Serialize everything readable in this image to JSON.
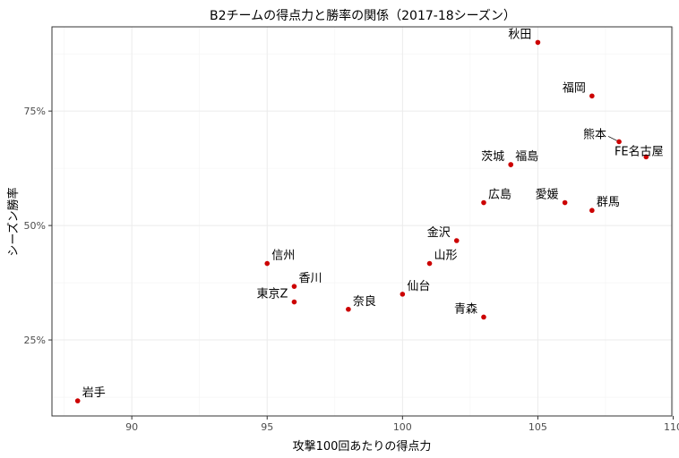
{
  "chart_data": {
    "type": "scatter",
    "title": "B2チームの得点力と勝率の関係（2017-18シーズン）",
    "xlabel": "攻撃100回あたりの得点力",
    "ylabel": "シーズン勝率",
    "xlim": [
      87.05,
      109.95
    ],
    "ylim": [
      0.084,
      0.934
    ],
    "x_ticks": [
      90,
      95,
      100,
      105,
      110
    ],
    "x_tick_labels": [
      "90",
      "95",
      "100",
      "105",
      "110"
    ],
    "y_ticks": [
      0.25,
      0.5,
      0.75
    ],
    "y_tick_labels": [
      "25%",
      "50%",
      "75%"
    ],
    "grid": true,
    "point_color": "#cc0000",
    "points": [
      {
        "name": "秋田",
        "x": 105.0,
        "y": 0.9,
        "label_side": "left"
      },
      {
        "name": "福岡",
        "x": 107.0,
        "y": 0.783,
        "label_side": "left"
      },
      {
        "name": "熊本",
        "x": 108.0,
        "y": 0.683,
        "label_side": "left"
      },
      {
        "name": "FE名古屋",
        "x": 109.0,
        "y": 0.65,
        "label_side": "center-above"
      },
      {
        "name": "茨城",
        "x": 104.0,
        "y": 0.633,
        "label_side": "left"
      },
      {
        "name": "福島",
        "x": 104.0,
        "y": 0.633,
        "label_side": "right"
      },
      {
        "name": "広島",
        "x": 103.0,
        "y": 0.55,
        "label_side": "right"
      },
      {
        "name": "愛媛",
        "x": 106.0,
        "y": 0.55,
        "label_side": "left"
      },
      {
        "name": "群馬",
        "x": 107.0,
        "y": 0.533,
        "label_side": "right"
      },
      {
        "name": "金沢",
        "x": 102.0,
        "y": 0.467,
        "label_side": "left"
      },
      {
        "name": "山形",
        "x": 101.0,
        "y": 0.417,
        "label_side": "right"
      },
      {
        "name": "信州",
        "x": 95.0,
        "y": 0.417,
        "label_side": "right"
      },
      {
        "name": "香川",
        "x": 96.0,
        "y": 0.367,
        "label_side": "right"
      },
      {
        "name": "東京Z",
        "x": 96.0,
        "y": 0.333,
        "label_side": "left"
      },
      {
        "name": "仙台",
        "x": 100.0,
        "y": 0.35,
        "label_side": "right"
      },
      {
        "name": "奈良",
        "x": 98.0,
        "y": 0.317,
        "label_side": "right"
      },
      {
        "name": "青森",
        "x": 103.0,
        "y": 0.3,
        "label_side": "left"
      },
      {
        "name": "岩手",
        "x": 88.0,
        "y": 0.117,
        "label_side": "right"
      }
    ]
  }
}
